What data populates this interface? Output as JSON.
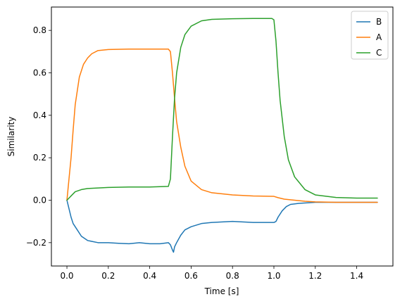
{
  "chart_data": {
    "type": "line",
    "title": "",
    "xlabel": "Time [s]",
    "ylabel": "Similarity",
    "xlim": [
      -0.075,
      1.575
    ],
    "ylim": [
      -0.31,
      0.91
    ],
    "xticks": [
      0.0,
      0.2,
      0.4,
      0.6,
      0.8,
      1.0,
      1.2,
      1.4
    ],
    "xtick_labels": [
      "0.0",
      "0.2",
      "0.4",
      "0.6",
      "0.8",
      "1.0",
      "1.2",
      "1.4"
    ],
    "yticks": [
      -0.2,
      0.0,
      0.2,
      0.4,
      0.6,
      0.8
    ],
    "ytick_labels": [
      "−0.2",
      "0.0",
      "0.2",
      "0.4",
      "0.6",
      "0.8"
    ],
    "grid": false,
    "legend_position": "top-right",
    "series": [
      {
        "name": "B",
        "color": "#1f77b4",
        "points": [
          [
            0.0,
            0.0
          ],
          [
            0.01,
            -0.04
          ],
          [
            0.02,
            -0.08
          ],
          [
            0.03,
            -0.11
          ],
          [
            0.05,
            -0.14
          ],
          [
            0.07,
            -0.17
          ],
          [
            0.1,
            -0.19
          ],
          [
            0.15,
            -0.2
          ],
          [
            0.2,
            -0.2
          ],
          [
            0.25,
            -0.203
          ],
          [
            0.3,
            -0.205
          ],
          [
            0.35,
            -0.2
          ],
          [
            0.4,
            -0.205
          ],
          [
            0.45,
            -0.205
          ],
          [
            0.49,
            -0.2
          ],
          [
            0.5,
            -0.21
          ],
          [
            0.51,
            -0.235
          ],
          [
            0.515,
            -0.245
          ],
          [
            0.52,
            -0.22
          ],
          [
            0.53,
            -0.2
          ],
          [
            0.55,
            -0.165
          ],
          [
            0.57,
            -0.14
          ],
          [
            0.6,
            -0.125
          ],
          [
            0.65,
            -0.11
          ],
          [
            0.7,
            -0.105
          ],
          [
            0.8,
            -0.1
          ],
          [
            0.9,
            -0.105
          ],
          [
            0.95,
            -0.105
          ],
          [
            1.0,
            -0.105
          ],
          [
            1.01,
            -0.1
          ],
          [
            1.02,
            -0.08
          ],
          [
            1.04,
            -0.05
          ],
          [
            1.06,
            -0.03
          ],
          [
            1.08,
            -0.02
          ],
          [
            1.12,
            -0.015
          ],
          [
            1.2,
            -0.01
          ],
          [
            1.3,
            -0.01
          ],
          [
            1.4,
            -0.01
          ],
          [
            1.5,
            -0.01
          ]
        ]
      },
      {
        "name": "A",
        "color": "#ff7f0e",
        "points": [
          [
            0.0,
            0.0
          ],
          [
            0.01,
            0.1
          ],
          [
            0.02,
            0.2
          ],
          [
            0.03,
            0.33
          ],
          [
            0.04,
            0.45
          ],
          [
            0.06,
            0.58
          ],
          [
            0.08,
            0.64
          ],
          [
            0.1,
            0.67
          ],
          [
            0.12,
            0.69
          ],
          [
            0.15,
            0.705
          ],
          [
            0.2,
            0.71
          ],
          [
            0.3,
            0.712
          ],
          [
            0.4,
            0.712
          ],
          [
            0.49,
            0.712
          ],
          [
            0.5,
            0.7
          ],
          [
            0.51,
            0.6
          ],
          [
            0.52,
            0.48
          ],
          [
            0.53,
            0.37
          ],
          [
            0.55,
            0.25
          ],
          [
            0.57,
            0.16
          ],
          [
            0.6,
            0.09
          ],
          [
            0.65,
            0.05
          ],
          [
            0.7,
            0.035
          ],
          [
            0.8,
            0.025
          ],
          [
            0.9,
            0.02
          ],
          [
            1.0,
            0.018
          ],
          [
            1.02,
            0.012
          ],
          [
            1.05,
            0.005
          ],
          [
            1.1,
            0.0
          ],
          [
            1.15,
            -0.005
          ],
          [
            1.2,
            -0.008
          ],
          [
            1.3,
            -0.01
          ],
          [
            1.4,
            -0.01
          ],
          [
            1.5,
            -0.01
          ]
        ]
      },
      {
        "name": "C",
        "color": "#2ca02c",
        "points": [
          [
            0.0,
            0.0
          ],
          [
            0.01,
            0.01
          ],
          [
            0.02,
            0.02
          ],
          [
            0.04,
            0.04
          ],
          [
            0.07,
            0.05
          ],
          [
            0.1,
            0.055
          ],
          [
            0.2,
            0.06
          ],
          [
            0.3,
            0.062
          ],
          [
            0.4,
            0.062
          ],
          [
            0.49,
            0.065
          ],
          [
            0.5,
            0.1
          ],
          [
            0.51,
            0.3
          ],
          [
            0.52,
            0.48
          ],
          [
            0.53,
            0.6
          ],
          [
            0.55,
            0.72
          ],
          [
            0.57,
            0.78
          ],
          [
            0.6,
            0.82
          ],
          [
            0.65,
            0.845
          ],
          [
            0.7,
            0.852
          ],
          [
            0.8,
            0.855
          ],
          [
            0.9,
            0.856
          ],
          [
            0.99,
            0.856
          ],
          [
            1.0,
            0.85
          ],
          [
            1.01,
            0.75
          ],
          [
            1.02,
            0.6
          ],
          [
            1.03,
            0.47
          ],
          [
            1.05,
            0.3
          ],
          [
            1.07,
            0.19
          ],
          [
            1.1,
            0.11
          ],
          [
            1.15,
            0.05
          ],
          [
            1.2,
            0.025
          ],
          [
            1.3,
            0.013
          ],
          [
            1.4,
            0.01
          ],
          [
            1.5,
            0.01
          ]
        ]
      }
    ]
  }
}
